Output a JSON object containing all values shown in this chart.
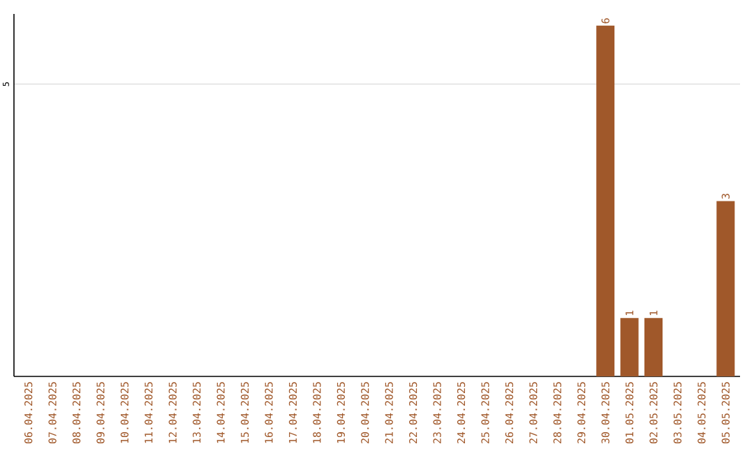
{
  "chart_data": {
    "type": "bar",
    "categories": [
      "06.04.2025",
      "07.04.2025",
      "08.04.2025",
      "09.04.2025",
      "10.04.2025",
      "11.04.2025",
      "12.04.2025",
      "13.04.2025",
      "14.04.2025",
      "15.04.2025",
      "16.04.2025",
      "17.04.2025",
      "18.04.2025",
      "19.04.2025",
      "20.04.2025",
      "21.04.2025",
      "22.04.2025",
      "23.04.2025",
      "24.04.2025",
      "25.04.2025",
      "26.04.2025",
      "27.04.2025",
      "28.04.2025",
      "29.04.2025",
      "30.04.2025",
      "01.05.2025",
      "02.05.2025",
      "03.05.2025",
      "04.05.2025",
      "05.05.2025"
    ],
    "values": [
      null,
      null,
      null,
      null,
      null,
      null,
      null,
      null,
      null,
      null,
      null,
      null,
      null,
      null,
      null,
      null,
      null,
      null,
      null,
      null,
      null,
      null,
      null,
      null,
      6,
      1,
      1,
      null,
      null,
      3
    ],
    "color": "#a0582a",
    "ylim": [
      0,
      6.2
    ],
    "yticks": [
      5
    ],
    "grid": "y",
    "data_labels": true
  }
}
